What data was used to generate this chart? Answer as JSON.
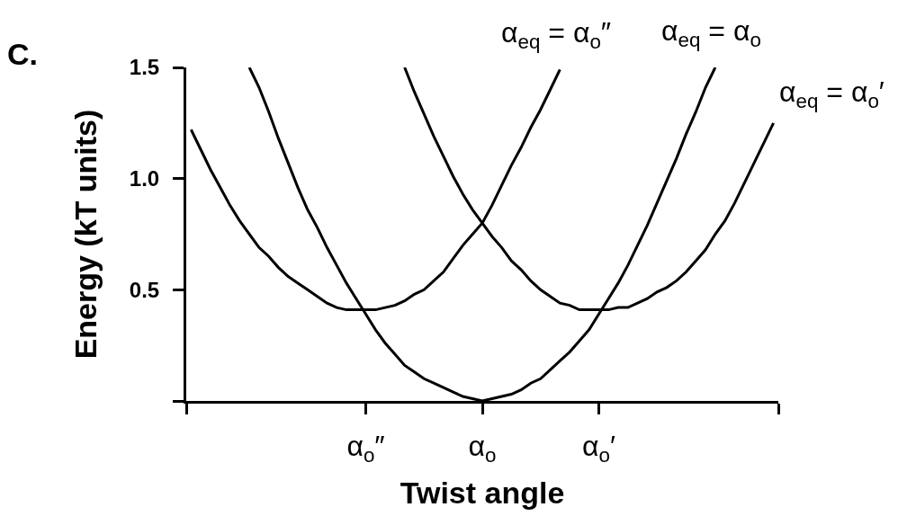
{
  "chart_data": {
    "type": "line",
    "title": "C.",
    "xlabel": "Twist angle",
    "ylabel": "Energy (kT units)",
    "categories": [
      null,
      null,
      null,
      null,
      null,
      null,
      null,
      null,
      null,
      null,
      null,
      null,
      null,
      null,
      null,
      null,
      null,
      null,
      "α$_{o}$″",
      null,
      null,
      null,
      null,
      null,
      null,
      null,
      null,
      null,
      null,
      null,
      "α$_{o}$",
      null,
      null,
      null,
      null,
      null,
      null,
      null,
      null,
      null,
      null,
      null,
      "α$_{o}$′",
      null,
      null,
      null,
      null,
      null,
      null,
      null,
      null,
      null,
      null,
      null,
      null,
      null,
      null,
      null,
      null,
      null,
      null
    ],
    "ylim": [
      0,
      1.5
    ],
    "yticks": [
      {
        "value": 0,
        "label": null
      },
      0.5,
      {
        "value": 1,
        "label": "1.0"
      },
      1.5
    ],
    "grid": false,
    "legend": false,
    "line_style": "solid",
    "series": [
      {
        "name": "α$_{eq}$ = α$_{o}$″",
        "color": "#000000",
        "values": [
          1.22,
          1.13,
          1.04,
          0.96,
          0.88,
          0.81,
          0.75,
          0.69,
          0.65,
          0.6,
          0.56,
          0.53,
          0.5,
          0.47,
          0.44,
          0.42,
          0.41,
          0.41,
          0.41,
          0.41,
          0.42,
          0.43,
          0.45,
          0.48,
          0.5,
          0.54,
          0.58,
          0.64,
          0.7,
          0.75,
          0.8,
          0.88,
          0.97,
          1.06,
          1.14,
          1.23,
          1.31,
          1.4,
          1.49,
          null,
          null,
          null,
          null,
          null,
          null,
          null,
          null,
          null,
          null,
          null,
          null,
          null,
          null,
          null,
          null,
          null,
          null,
          null,
          null,
          null,
          null
        ]
      },
      {
        "name": "α$_{eq}$ = α$_{o}$",
        "color": "#000000",
        "values": [
          null,
          null,
          null,
          null,
          null,
          null,
          1.5,
          1.41,
          1.3,
          1.18,
          1.07,
          0.96,
          0.86,
          0.78,
          0.69,
          0.61,
          0.53,
          0.46,
          0.39,
          0.32,
          0.26,
          0.21,
          0.16,
          0.13,
          0.1,
          0.08,
          0.06,
          0.04,
          0.02,
          0.01,
          0.0,
          0.01,
          0.02,
          0.03,
          0.05,
          0.08,
          0.1,
          0.14,
          0.18,
          0.22,
          0.27,
          0.32,
          0.39,
          0.46,
          0.53,
          0.61,
          0.7,
          0.79,
          0.89,
          0.99,
          1.09,
          1.2,
          1.3,
          1.41,
          1.5,
          null,
          null,
          null,
          null,
          null,
          null
        ]
      },
      {
        "name": "α$_{eq}$ = α$_{o}$′",
        "color": "#000000",
        "values": [
          null,
          null,
          null,
          null,
          null,
          null,
          null,
          null,
          null,
          null,
          null,
          null,
          null,
          null,
          null,
          null,
          null,
          null,
          null,
          null,
          null,
          null,
          1.5,
          1.39,
          1.29,
          1.19,
          1.1,
          1.01,
          0.93,
          0.86,
          0.8,
          0.74,
          0.69,
          0.63,
          0.59,
          0.54,
          0.5,
          0.47,
          0.44,
          0.43,
          0.41,
          0.41,
          0.41,
          0.41,
          0.42,
          0.42,
          0.44,
          0.46,
          0.49,
          0.51,
          0.54,
          0.58,
          0.63,
          0.68,
          0.75,
          0.81,
          0.89,
          0.98,
          1.07,
          1.16,
          1.25
        ]
      }
    ]
  }
}
